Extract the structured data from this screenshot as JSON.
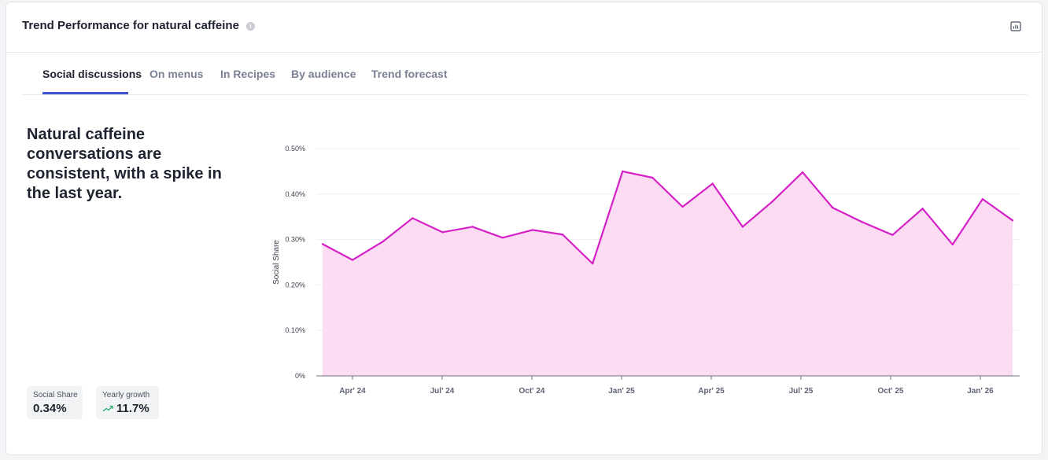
{
  "header": {
    "title": "Trend Performance for natural caffeine",
    "info_icon": "info-icon",
    "chart_icon": "bar-chart-icon"
  },
  "tabs": [
    {
      "label": "Social discussions",
      "active": true
    },
    {
      "label": "On menus",
      "active": false
    },
    {
      "label": "In Recipes",
      "active": false
    },
    {
      "label": "By audience",
      "active": false
    },
    {
      "label": "Trend forecast",
      "active": false
    }
  ],
  "headline": "Natural caffeine conversations are consistent, with a spike in the last year.",
  "stats": {
    "social_share": {
      "label": "Social Share",
      "value": "0.34%"
    },
    "yearly_growth": {
      "label": "Yearly growth",
      "value": "11.7%",
      "icon": "trending-up-icon"
    }
  },
  "colors": {
    "accent": "#3d55cf",
    "line": "#d620c7",
    "area": "#fbdcf3",
    "growth": "#2eaa6f"
  },
  "chart_data": {
    "type": "area",
    "ylabel": "Social Share",
    "ylim": [
      0,
      0.5
    ],
    "y_ticks": [
      "0%",
      "0.10%",
      "0.20%",
      "0.30%",
      "0.40%",
      "0.50%"
    ],
    "x_tick_labels": [
      "Apr' 24",
      "Jul' 24",
      "Oct' 24",
      "Jan' 25",
      "Apr' 25",
      "Jul' 25",
      "Oct' 25",
      "Jan' 26"
    ],
    "grid": true,
    "series": [
      {
        "values": [
          0.29,
          0.255,
          0.295,
          0.347,
          0.316,
          0.328,
          0.304,
          0.321,
          0.311,
          0.247,
          0.45,
          0.436,
          0.372,
          0.423,
          0.328,
          0.384,
          0.448,
          0.37,
          0.338,
          0.31,
          0.368,
          0.289,
          0.389,
          0.342
        ]
      }
    ]
  }
}
